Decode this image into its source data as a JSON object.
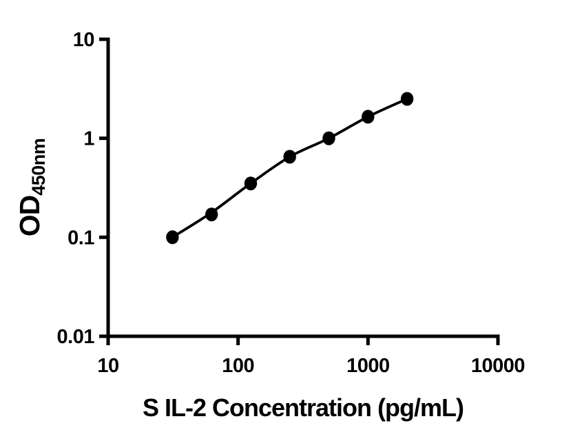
{
  "figure": {
    "background": "#ffffff",
    "foreground": "#000000"
  },
  "chart_data": {
    "type": "scatter",
    "title": "",
    "xlabel": "S IL-2 Concentration (pg/mL)",
    "ylabel_main": "OD",
    "ylabel_sub": "450nm",
    "x_scale": "log",
    "y_scale": "log",
    "xlim": [
      10,
      10000
    ],
    "ylim": [
      0.01,
      10
    ],
    "x_ticks": [
      10,
      100,
      1000,
      10000
    ],
    "x_tick_labels": [
      "10",
      "100",
      "1000",
      "10000"
    ],
    "y_ticks": [
      10,
      1,
      0.1,
      0.01
    ],
    "y_tick_labels": [
      "10",
      "1",
      "0.1",
      "0.01"
    ],
    "grid": false,
    "legend": "none",
    "series": [
      {
        "x": [
          31.25,
          62.5,
          125,
          250,
          500,
          1000,
          2000
        ],
        "y": [
          0.1,
          0.17,
          0.35,
          0.65,
          1.0,
          1.65,
          2.5
        ],
        "fit_y": [
          0.1,
          0.178,
          0.35,
          0.65,
          1.0,
          1.65,
          2.5
        ],
        "marker": "filled-circle",
        "marker_color": "#000000",
        "line_color": "#000000"
      }
    ]
  }
}
